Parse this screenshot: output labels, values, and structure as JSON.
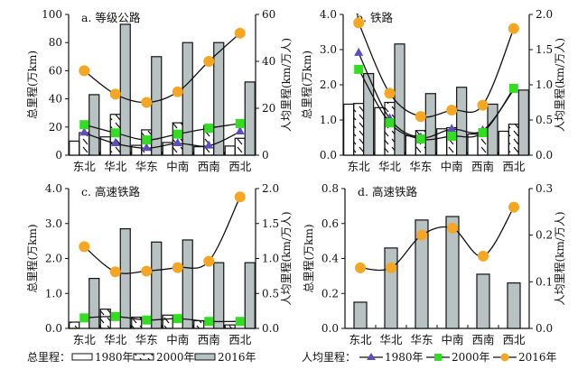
{
  "chart_data": [
    {
      "type": "bar",
      "title": "a. 等级公路",
      "categories": [
        "东北",
        "华北",
        "华东",
        "中南",
        "西南",
        "西北"
      ],
      "ylabel": "总里程(万km)",
      "y2label": "人均里程(km/万人)",
      "ylim": [
        0,
        100
      ],
      "y2lim": [
        0,
        60
      ],
      "yticks": [
        "0",
        "20",
        "40",
        "60",
        "80",
        "100"
      ],
      "y2ticks": [
        "0",
        "20",
        "40",
        "60"
      ],
      "bar_series": [
        {
          "name": "1980年",
          "values": [
            10,
            13,
            7,
            9,
            6,
            6.5
          ]
        },
        {
          "name": "2000年",
          "values": [
            16,
            29,
            18,
            23,
            21,
            12
          ]
        },
        {
          "name": "2016年",
          "values": [
            43,
            93,
            70,
            80,
            80,
            52
          ]
        }
      ],
      "line_series": [
        {
          "name": "1980年",
          "values": [
            9.5,
            5,
            3,
            5,
            4,
            10
          ]
        },
        {
          "name": "2000年",
          "values": [
            13,
            9.5,
            6.5,
            9,
            11.5,
            13.5
          ]
        },
        {
          "name": "2016年",
          "values": [
            36,
            26,
            22.5,
            27,
            40,
            52
          ]
        }
      ]
    },
    {
      "type": "bar",
      "title": "b. 铁路",
      "categories": [
        "东北",
        "华北",
        "华东",
        "中南",
        "西南",
        "西北"
      ],
      "ylabel": "总里程(万km)",
      "y2label": "人均里程(km/万人)",
      "ylim": [
        0,
        4
      ],
      "y2lim": [
        0,
        2
      ],
      "yticks": [
        "0.0",
        "1.0",
        "2.0",
        "3.0",
        "4.0"
      ],
      "y2ticks": [
        "0.0",
        "0.5",
        "1.0",
        "1.5",
        "2.0"
      ],
      "bar_series": [
        {
          "name": "1980年",
          "values": [
            1.45,
            1.35,
            0.55,
            0.75,
            0.6,
            0.68
          ]
        },
        {
          "name": "2000年",
          "values": [
            1.47,
            1.5,
            0.7,
            0.78,
            0.62,
            0.88
          ]
        },
        {
          "name": "2016年",
          "values": [
            2.32,
            3.16,
            1.75,
            1.93,
            1.45,
            1.85
          ]
        }
      ],
      "line_series": [
        {
          "name": "1980年",
          "values": [
            1.45,
            0.52,
            0.25,
            0.37,
            0.35,
            0.93
          ]
        },
        {
          "name": "2000年",
          "values": [
            1.22,
            0.46,
            0.23,
            0.27,
            0.32,
            0.95
          ]
        },
        {
          "name": "2016年",
          "values": [
            1.88,
            0.88,
            0.55,
            0.64,
            0.71,
            1.8
          ]
        }
      ]
    },
    {
      "type": "bar",
      "title": "c. 高速铁路",
      "categories": [
        "东北",
        "华北",
        "华东",
        "中南",
        "西南",
        "西北"
      ],
      "ylabel": "总里程(万km)",
      "y2label": "人均里程(km/万人)",
      "ylim": [
        0,
        4
      ],
      "y2lim": [
        0,
        2
      ],
      "yticks": [
        "0.0",
        "1.0",
        "2.0",
        "3.0",
        "4.0"
      ],
      "y2ticks": [
        "0.0",
        "0.5",
        "1.0",
        "1.5",
        "2.0"
      ],
      "bar_series": [
        {
          "name": "2000年",
          "values": [
            0.18,
            0.55,
            0.32,
            0.38,
            0.22,
            0.1
          ]
        },
        {
          "name": "2016年",
          "values": [
            1.43,
            2.85,
            2.47,
            2.53,
            1.88,
            1.88
          ]
        }
      ],
      "line_series": [
        {
          "name": "2000年",
          "values": [
            0.15,
            0.17,
            0.12,
            0.14,
            0.1,
            0.1
          ]
        },
        {
          "name": "2016年",
          "values": [
            1.17,
            0.81,
            0.82,
            0.87,
            0.96,
            1.88
          ]
        }
      ]
    },
    {
      "type": "bar",
      "title": "d. 高速铁路",
      "categories": [
        "东北",
        "华北",
        "华东",
        "中南",
        "西南",
        "西北"
      ],
      "ylabel": "总里程(万km)",
      "y2label": "人均里程(km/万人)",
      "ylim": [
        0,
        0.8
      ],
      "y2lim": [
        0,
        0.3
      ],
      "yticks": [
        "0.0",
        "0.2",
        "0.4",
        "0.6",
        "0.8"
      ],
      "y2ticks": [
        "0.0",
        "0.1",
        "0.2",
        "0.3"
      ],
      "bar_series": [
        {
          "name": "2016年",
          "values": [
            0.15,
            0.46,
            0.62,
            0.64,
            0.31,
            0.26
          ]
        }
      ],
      "line_series": [
        {
          "name": "2016年",
          "values": [
            0.13,
            0.13,
            0.2,
            0.215,
            0.155,
            0.26
          ]
        }
      ]
    }
  ],
  "legend": {
    "total_label": "总里程：",
    "per_capita_label": "人均里程：",
    "items": [
      "1980年",
      "2000年",
      "2016年"
    ]
  },
  "colors": {
    "bar2016": "#b9c2c3",
    "tri1980": "#5b4fc0",
    "sq2000": "#33dd22",
    "circ2016": "#f5a623"
  }
}
